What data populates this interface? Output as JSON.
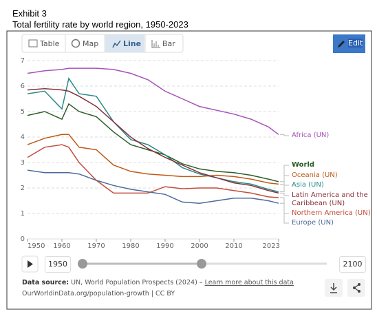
{
  "header": {
    "exhibit": "Exhibit 3",
    "title": "Total fertility rate by world region, 1950-2023"
  },
  "tabs": [
    "Table",
    "Map",
    "Line",
    "Bar"
  ],
  "edit_button": "Edit",
  "chart_data": {
    "type": "line",
    "x": [
      1950,
      1955,
      1960,
      1962,
      1965,
      1970,
      1975,
      1980,
      1985,
      1990,
      1995,
      2000,
      2005,
      2010,
      2015,
      2020,
      2023
    ],
    "xlim": [
      1950,
      2023
    ],
    "xticks": [
      1950,
      1960,
      1970,
      1980,
      1990,
      2000,
      2010,
      2023
    ],
    "ylim": [
      0,
      7
    ],
    "yticks": [
      0,
      1,
      2,
      3,
      4,
      5,
      6,
      7
    ],
    "grid": true,
    "series": [
      {
        "name": "Africa (UN)",
        "color": "#a652ba",
        "values": [
          6.5,
          6.6,
          6.65,
          6.7,
          6.7,
          6.7,
          6.65,
          6.5,
          6.25,
          5.8,
          5.5,
          5.2,
          5.05,
          4.9,
          4.7,
          4.4,
          4.1
        ]
      },
      {
        "name": "World",
        "color": "#2c5e27",
        "values": [
          4.85,
          5.0,
          4.7,
          5.3,
          5.0,
          4.8,
          4.2,
          3.7,
          3.5,
          3.3,
          2.95,
          2.75,
          2.65,
          2.6,
          2.5,
          2.35,
          2.25
        ]
      },
      {
        "name": "Oceania (UN)",
        "color": "#c05917",
        "values": [
          3.7,
          3.95,
          4.1,
          4.1,
          3.6,
          3.5,
          2.9,
          2.65,
          2.55,
          2.5,
          2.45,
          2.45,
          2.5,
          2.45,
          2.35,
          2.2,
          2.15
        ]
      },
      {
        "name": "Asia (UN)",
        "color": "#2a8a8a",
        "values": [
          5.7,
          5.8,
          5.1,
          6.3,
          5.7,
          5.6,
          4.6,
          3.9,
          3.7,
          3.3,
          2.8,
          2.55,
          2.4,
          2.25,
          2.15,
          1.95,
          1.85
        ]
      },
      {
        "name": "Latin America and the Caribbean (UN)",
        "color": "#883039",
        "values": [
          5.85,
          5.9,
          5.85,
          5.8,
          5.6,
          5.2,
          4.6,
          4.0,
          3.55,
          3.2,
          2.9,
          2.6,
          2.4,
          2.2,
          2.1,
          1.9,
          1.8
        ]
      },
      {
        "name": "Northern America (UN)",
        "color": "#c14d3a",
        "values": [
          3.2,
          3.6,
          3.7,
          3.6,
          3.0,
          2.3,
          1.8,
          1.8,
          1.8,
          2.05,
          1.97,
          2.0,
          2.0,
          1.9,
          1.8,
          1.65,
          1.62
        ]
      },
      {
        "name": "Europe (UN)",
        "color": "#4c6a9c",
        "values": [
          2.7,
          2.6,
          2.6,
          2.6,
          2.55,
          2.3,
          2.1,
          1.95,
          1.85,
          1.75,
          1.45,
          1.4,
          1.5,
          1.6,
          1.6,
          1.5,
          1.4
        ]
      }
    ]
  },
  "timeline": {
    "start": "1950",
    "end": "2100"
  },
  "footer": {
    "source_label": "Data source:",
    "source_text": "UN, World Population Prospects (2024) –",
    "link": "Learn more about this data",
    "credit": "OurWorldinData.org/population-growth | CC BY"
  }
}
